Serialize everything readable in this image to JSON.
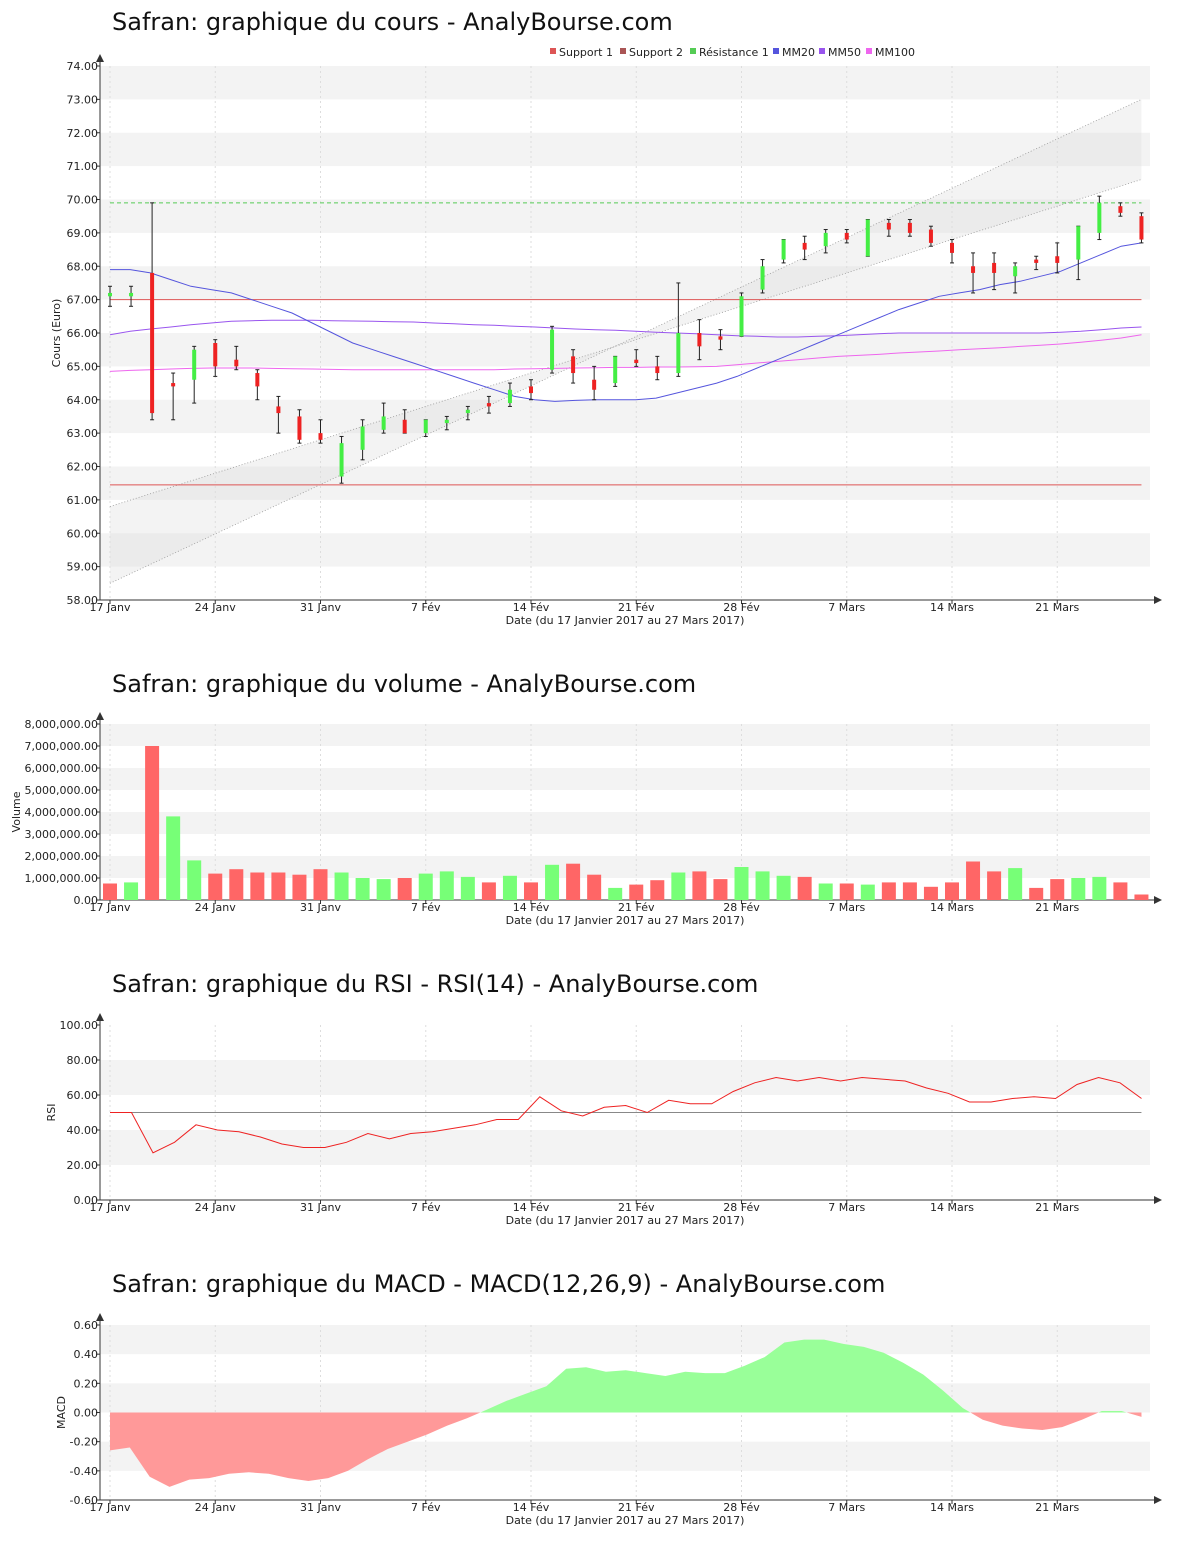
{
  "titles": {
    "price": "Safran: graphique du cours - AnalyBourse.com",
    "volume": "Safran: graphique du volume - AnalyBourse.com",
    "rsi": "Safran: graphique du RSI - RSI(14) - AnalyBourse.com",
    "macd": "Safran: graphique du MACD - MACD(12,26,9) - AnalyBourse.com"
  },
  "xlabel": "Date (du 17 Janvier 2017 au 27 Mars 2017)",
  "x_ticks": [
    "17 Janv",
    "24 Janv",
    "31 Janv",
    "7 Fév",
    "14 Fév",
    "21 Fév",
    "28 Fév",
    "7 Mars",
    "14 Mars",
    "21 Mars"
  ],
  "colors": {
    "up": "#44ee44",
    "down": "#ee2222",
    "vol_up": "#77ff77",
    "vol_down": "#ff6666",
    "mm20": "#5555dd",
    "mm50": "#9955ee",
    "mm100": "#ee66ee",
    "support1": "#dd5555",
    "support2": "#aa5555",
    "resistance": "#55cc55",
    "rsi": "#ee2222",
    "macd_pos": "#99ff99",
    "macd_neg": "#ff9999"
  },
  "chart_data": [
    {
      "type": "candlestick",
      "title": "Safran: graphique du cours - AnalyBourse.com",
      "ylabel": "Cours (Euro)",
      "ylim": [
        58,
        74
      ],
      "y_ticks": [
        "58.00",
        "59.00",
        "60.00",
        "61.00",
        "62.00",
        "63.00",
        "64.00",
        "65.00",
        "66.00",
        "67.00",
        "68.00",
        "69.00",
        "70.00",
        "71.00",
        "72.00",
        "73.00",
        "74.00"
      ],
      "legend": [
        "Support 1",
        "Support 2",
        "Résistance 1",
        "MM20",
        "MM50",
        "MM100"
      ],
      "legend_position": "top-right",
      "grid": true,
      "support1": 67.0,
      "support2": 61.45,
      "resistance1": 69.9,
      "ohlc": [
        {
          "o": 67.1,
          "h": 67.4,
          "l": 66.8,
          "c": 67.2
        },
        {
          "o": 67.1,
          "h": 67.4,
          "l": 66.8,
          "c": 67.2
        },
        {
          "o": 67.8,
          "h": 69.9,
          "l": 63.4,
          "c": 63.6
        },
        {
          "o": 64.5,
          "h": 64.8,
          "l": 63.4,
          "c": 64.4
        },
        {
          "o": 64.6,
          "h": 65.6,
          "l": 63.9,
          "c": 65.5
        },
        {
          "o": 65.7,
          "h": 65.8,
          "l": 64.7,
          "c": 65.0
        },
        {
          "o": 65.2,
          "h": 65.6,
          "l": 64.9,
          "c": 65.0
        },
        {
          "o": 64.8,
          "h": 64.9,
          "l": 64.0,
          "c": 64.4
        },
        {
          "o": 63.8,
          "h": 64.1,
          "l": 63.0,
          "c": 63.6
        },
        {
          "o": 63.5,
          "h": 63.7,
          "l": 62.7,
          "c": 62.8
        },
        {
          "o": 63.0,
          "h": 63.4,
          "l": 62.7,
          "c": 62.8
        },
        {
          "o": 61.7,
          "h": 62.9,
          "l": 61.5,
          "c": 62.7
        },
        {
          "o": 62.5,
          "h": 63.4,
          "l": 62.2,
          "c": 63.2
        },
        {
          "o": 63.1,
          "h": 63.9,
          "l": 63.0,
          "c": 63.5
        },
        {
          "o": 63.4,
          "h": 63.7,
          "l": 63.0,
          "c": 63.0
        },
        {
          "o": 63.0,
          "h": 63.4,
          "l": 62.9,
          "c": 63.4
        },
        {
          "o": 63.3,
          "h": 63.5,
          "l": 63.1,
          "c": 63.4
        },
        {
          "o": 63.6,
          "h": 63.8,
          "l": 63.4,
          "c": 63.7
        },
        {
          "o": 63.9,
          "h": 64.1,
          "l": 63.6,
          "c": 63.8
        },
        {
          "o": 63.9,
          "h": 64.5,
          "l": 63.8,
          "c": 64.3
        },
        {
          "o": 64.4,
          "h": 64.6,
          "l": 64.0,
          "c": 64.2
        },
        {
          "o": 64.9,
          "h": 66.2,
          "l": 64.8,
          "c": 66.1
        },
        {
          "o": 65.3,
          "h": 65.5,
          "l": 64.5,
          "c": 64.8
        },
        {
          "o": 64.6,
          "h": 65.0,
          "l": 64.0,
          "c": 64.3
        },
        {
          "o": 64.5,
          "h": 65.3,
          "l": 64.4,
          "c": 65.3
        },
        {
          "o": 65.2,
          "h": 65.5,
          "l": 65.0,
          "c": 65.1
        },
        {
          "o": 65.0,
          "h": 65.3,
          "l": 64.6,
          "c": 64.8
        },
        {
          "o": 64.8,
          "h": 67.5,
          "l": 64.7,
          "c": 66.0
        },
        {
          "o": 66.0,
          "h": 66.4,
          "l": 65.2,
          "c": 65.6
        },
        {
          "o": 65.9,
          "h": 66.1,
          "l": 65.5,
          "c": 65.8
        },
        {
          "o": 65.9,
          "h": 67.2,
          "l": 65.9,
          "c": 67.1
        },
        {
          "o": 67.3,
          "h": 68.2,
          "l": 67.2,
          "c": 68.0
        },
        {
          "o": 68.2,
          "h": 68.8,
          "l": 68.1,
          "c": 68.8
        },
        {
          "o": 68.7,
          "h": 68.9,
          "l": 68.2,
          "c": 68.5
        },
        {
          "o": 68.6,
          "h": 69.1,
          "l": 68.4,
          "c": 69.0
        },
        {
          "o": 69.0,
          "h": 69.1,
          "l": 68.7,
          "c": 68.8
        },
        {
          "o": 68.3,
          "h": 69.4,
          "l": 68.3,
          "c": 69.4
        },
        {
          "o": 69.3,
          "h": 69.4,
          "l": 68.9,
          "c": 69.1
        },
        {
          "o": 69.3,
          "h": 69.4,
          "l": 68.9,
          "c": 69.0
        },
        {
          "o": 69.1,
          "h": 69.2,
          "l": 68.6,
          "c": 68.7
        },
        {
          "o": 68.7,
          "h": 68.8,
          "l": 68.1,
          "c": 68.4
        },
        {
          "o": 68.0,
          "h": 68.4,
          "l": 67.2,
          "c": 67.8
        },
        {
          "o": 68.1,
          "h": 68.4,
          "l": 67.3,
          "c": 67.8
        },
        {
          "o": 67.7,
          "h": 68.1,
          "l": 67.2,
          "c": 68.0
        },
        {
          "o": 68.2,
          "h": 68.3,
          "l": 67.9,
          "c": 68.1
        },
        {
          "o": 68.3,
          "h": 68.7,
          "l": 67.8,
          "c": 68.1
        },
        {
          "o": 68.2,
          "h": 69.2,
          "l": 67.6,
          "c": 69.2
        },
        {
          "o": 69.0,
          "h": 70.1,
          "l": 68.8,
          "c": 69.9
        },
        {
          "o": 69.8,
          "h": 69.9,
          "l": 69.5,
          "c": 69.6
        },
        {
          "o": 69.5,
          "h": 69.6,
          "l": 68.7,
          "c": 68.8
        }
      ],
      "mm20": [
        67.9,
        67.9,
        67.8,
        67.6,
        67.4,
        67.3,
        67.2,
        67.0,
        66.8,
        66.6,
        66.3,
        66.0,
        65.7,
        65.5,
        65.3,
        65.1,
        64.9,
        64.7,
        64.5,
        64.3,
        64.1,
        64.0,
        63.95,
        63.98,
        64.0,
        64.0,
        64.0,
        64.05,
        64.2,
        64.35,
        64.5,
        64.7,
        64.95,
        65.2,
        65.45,
        65.7,
        65.95,
        66.2,
        66.45,
        66.7,
        66.9,
        67.1,
        67.2,
        67.3,
        67.45,
        67.55,
        67.7,
        67.85,
        68.1,
        68.35,
        68.6,
        68.7
      ],
      "mm50": [
        65.95,
        66.05,
        66.12,
        66.18,
        66.25,
        66.3,
        66.35,
        66.37,
        66.38,
        66.38,
        66.38,
        66.37,
        66.36,
        66.35,
        66.34,
        66.33,
        66.3,
        66.28,
        66.25,
        66.23,
        66.2,
        66.18,
        66.15,
        66.12,
        66.1,
        66.08,
        66.05,
        66.02,
        66.0,
        65.98,
        65.95,
        65.92,
        65.9,
        65.88,
        65.88,
        65.9,
        65.92,
        65.95,
        65.98,
        66.0,
        66.0,
        66.0,
        66.0,
        66.0,
        66.0,
        66.0,
        66.0,
        66.02,
        66.05,
        66.1,
        66.15,
        66.18
      ],
      "mm100": [
        64.85,
        64.88,
        64.9,
        64.92,
        64.94,
        64.95,
        64.95,
        64.95,
        64.94,
        64.93,
        64.92,
        64.91,
        64.9,
        64.9,
        64.9,
        64.9,
        64.9,
        64.9,
        64.9,
        64.9,
        64.92,
        64.93,
        64.94,
        64.95,
        64.96,
        64.97,
        64.97,
        64.98,
        64.98,
        64.99,
        65.0,
        65.05,
        65.1,
        65.15,
        65.2,
        65.25,
        65.3,
        65.33,
        65.36,
        65.4,
        65.43,
        65.46,
        65.5,
        65.53,
        65.56,
        65.6,
        65.63,
        65.67,
        65.72,
        65.78,
        65.85,
        65.95
      ],
      "channel_upper": [
        60.8,
        70.6
      ],
      "channel_lower": [
        58.5,
        73.0
      ]
    },
    {
      "type": "bar",
      "title": "Safran: graphique du volume - AnalyBourse.com",
      "ylabel": "Volume",
      "ylim": [
        0,
        8000000
      ],
      "y_ticks": [
        "0.00",
        "1,000,000.00",
        "2,000,000.00",
        "3,000,000.00",
        "4,000,000.00",
        "5,000,000.00",
        "6,000,000.00",
        "7,000,000.00",
        "8,000,000.00"
      ],
      "grid": true,
      "values": [
        750000,
        800000,
        7000000,
        3800000,
        1800000,
        1200000,
        1400000,
        1250000,
        1250000,
        1150000,
        1400000,
        1250000,
        1000000,
        950000,
        1000000,
        1200000,
        1300000,
        1050000,
        800000,
        1100000,
        800000,
        1600000,
        1650000,
        1150000,
        550000,
        700000,
        900000,
        1250000,
        1300000,
        950000,
        1500000,
        1300000,
        1100000,
        1050000,
        750000,
        750000,
        700000,
        800000,
        800000,
        600000,
        800000,
        1750000,
        1300000,
        1450000,
        550000,
        950000,
        1000000,
        1050000,
        800000,
        250000
      ],
      "directions": [
        "d",
        "u",
        "d",
        "u",
        "u",
        "d",
        "d",
        "d",
        "d",
        "d",
        "d",
        "u",
        "u",
        "u",
        "d",
        "u",
        "u",
        "u",
        "d",
        "u",
        "d",
        "u",
        "d",
        "d",
        "u",
        "d",
        "d",
        "u",
        "d",
        "d",
        "u",
        "u",
        "u",
        "d",
        "u",
        "d",
        "u",
        "d",
        "d",
        "d",
        "d",
        "d",
        "d",
        "u",
        "d",
        "d",
        "u",
        "u",
        "d",
        "d"
      ]
    },
    {
      "type": "line",
      "title": "Safran: graphique du RSI - RSI(14) - AnalyBourse.com",
      "ylabel": "RSI",
      "ylim": [
        0,
        100
      ],
      "y_ticks": [
        "0.00",
        "20.00",
        "40.00",
        "60.00",
        "80.00",
        "100.00"
      ],
      "grid": true,
      "reference_line": 50,
      "values": [
        50,
        50,
        27,
        33,
        43,
        40,
        39,
        36,
        32,
        30,
        30,
        33,
        38,
        35,
        38,
        39,
        41,
        43,
        46,
        46,
        59,
        51,
        48,
        53,
        54,
        50,
        57,
        55,
        55,
        62,
        67,
        70,
        68,
        70,
        68,
        70,
        69,
        68,
        64,
        61,
        56,
        56,
        58,
        59,
        58,
        66,
        70,
        67,
        58
      ]
    },
    {
      "type": "area",
      "title": "Safran: graphique du MACD - MACD(12,26,9) - AnalyBourse.com",
      "ylabel": "MACD",
      "ylim": [
        -0.6,
        0.6
      ],
      "y_ticks": [
        "-0.60",
        "-0.40",
        "-0.20",
        "0.00",
        "0.20",
        "0.40",
        "0.60"
      ],
      "grid": true,
      "values": [
        -0.26,
        -0.24,
        -0.44,
        -0.51,
        -0.46,
        -0.45,
        -0.42,
        -0.41,
        -0.42,
        -0.45,
        -0.47,
        -0.45,
        -0.4,
        -0.32,
        -0.25,
        -0.2,
        -0.15,
        -0.09,
        -0.04,
        0.02,
        0.08,
        0.13,
        0.18,
        0.3,
        0.31,
        0.28,
        0.29,
        0.27,
        0.25,
        0.28,
        0.27,
        0.27,
        0.32,
        0.38,
        0.48,
        0.5,
        0.5,
        0.47,
        0.45,
        0.41,
        0.34,
        0.26,
        0.15,
        0.03,
        -0.05,
        -0.09,
        -0.11,
        -0.12,
        -0.1,
        -0.05,
        0.01,
        0.01,
        -0.03
      ]
    }
  ]
}
